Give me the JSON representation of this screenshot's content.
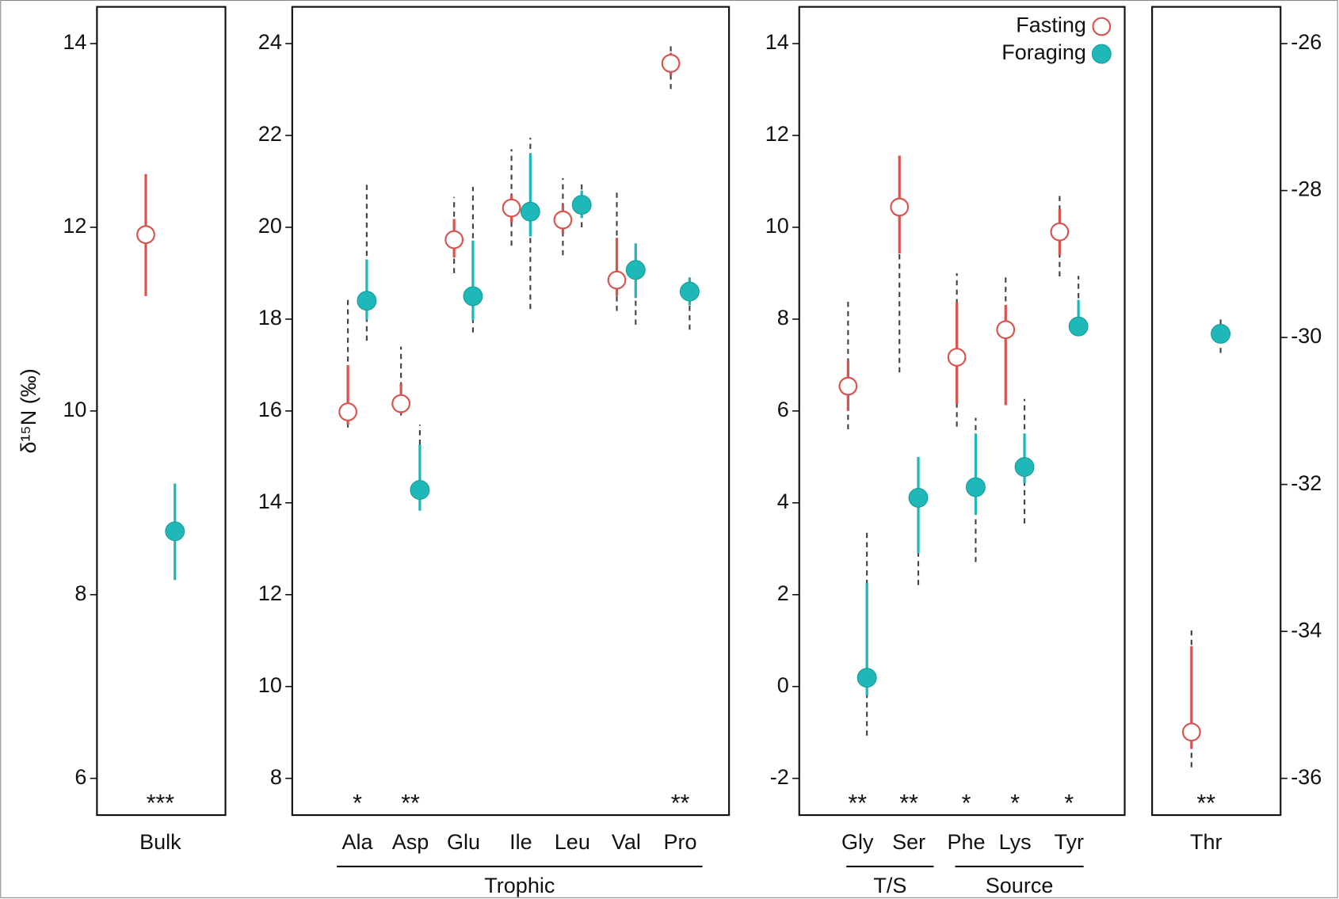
{
  "chart_data": [
    {
      "type": "errorbar",
      "ylabel": "δ¹⁵N (‰)",
      "categories": [
        "Bulk"
      ],
      "ylim": [
        5.6,
        14.4
      ],
      "yticks": [
        6,
        8,
        10,
        12,
        14
      ],
      "significance": [
        "***"
      ],
      "series": [
        {
          "color": "#d9534f",
          "filled": false,
          "values": [
            11.92
          ],
          "solid": [
            [
              11.25,
              12.58
            ]
          ]
        },
        {
          "color": "#1fb8b8",
          "filled": true,
          "values": [
            8.69
          ],
          "solid": [
            [
              8.16,
              9.21
            ]
          ]
        }
      ]
    },
    {
      "type": "errorbar",
      "categories": [
        "Ala",
        "Asp",
        "Glu",
        "Ile",
        "Leu",
        "Val",
        "Pro"
      ],
      "groups": [
        "Trophic"
      ],
      "ylim": [
        7.2,
        24.8
      ],
      "yticks": [
        8,
        10,
        12,
        14,
        16,
        18,
        20,
        22,
        24
      ],
      "significance": [
        "*",
        "**",
        null,
        null,
        null,
        null,
        "**"
      ],
      "series": [
        {
          "color": "#d9534f",
          "filled": false,
          "values": [
            15.98,
            16.16,
            19.73,
            20.42,
            20.16,
            18.85,
            23.57
          ],
          "solid": [
            [
              15.7,
              17.0
            ],
            [
              15.94,
              16.6
            ],
            [
              19.34,
              20.18
            ],
            [
              20.1,
              20.7
            ],
            [
              19.86,
              20.5
            ],
            [
              18.5,
              19.77
            ],
            [
              23.3,
              23.8
            ]
          ],
          "dashed": [
            [
              15.64,
              18.46
            ],
            [
              15.9,
              17.4
            ],
            [
              19.0,
              20.66
            ],
            [
              19.6,
              21.7
            ],
            [
              19.39,
              21.07
            ],
            [
              18.18,
              20.8
            ],
            [
              23.01,
              23.94
            ]
          ]
        },
        {
          "color": "#1fb8b8",
          "filled": true,
          "values": [
            18.4,
            14.28,
            18.5,
            20.34,
            20.49,
            19.07,
            18.6
          ],
          "solid": [
            [
              17.99,
              19.3
            ],
            [
              13.83,
              15.27
            ],
            [
              17.97,
              19.71
            ],
            [
              19.8,
              21.6
            ],
            [
              20.2,
              20.8
            ],
            [
              18.46,
              19.65
            ],
            [
              18.3,
              18.9
            ]
          ],
          "dashed": [
            [
              17.53,
              20.98
            ],
            [
              13.83,
              15.7
            ],
            [
              17.71,
              20.88
            ],
            [
              18.22,
              21.95
            ],
            [
              20.0,
              21.01
            ],
            [
              17.88,
              19.65
            ],
            [
              17.77,
              18.93
            ]
          ]
        }
      ]
    },
    {
      "type": "errorbar",
      "categories": [
        "Gly",
        "Ser",
        "Phe",
        "Lys",
        "Tyr"
      ],
      "groups": [
        "T/S",
        "Source"
      ],
      "ylim": [
        -2.8,
        14.8
      ],
      "yticks": [
        -2,
        0,
        2,
        4,
        6,
        8,
        10,
        12,
        14
      ],
      "legend": "upper right",
      "significance": [
        "**",
        "**",
        "*",
        "*",
        "*"
      ],
      "series": [
        {
          "name": "Fasting",
          "color": "#d9534f",
          "filled": false,
          "values": [
            6.54,
            10.44,
            7.17,
            7.77,
            9.9
          ],
          "solid": [
            [
              6.0,
              7.1
            ],
            [
              9.43,
              11.56
            ],
            [
              6.16,
              8.37
            ],
            [
              6.13,
              8.31
            ],
            [
              9.4,
              10.4
            ]
          ],
          "dashed": [
            [
              5.6,
              8.44
            ],
            [
              6.84,
              11.56
            ],
            [
              5.66,
              9.0
            ],
            [
              6.13,
              8.96
            ],
            [
              8.93,
              10.73
            ]
          ]
        },
        {
          "name": "Foraging",
          "color": "#1fb8b8",
          "filled": true,
          "values": [
            0.19,
            4.11,
            4.34,
            4.78,
            7.84
          ],
          "solid": [
            [
              -0.2,
              2.25
            ],
            [
              2.9,
              5.0
            ],
            [
              3.74,
              5.51
            ],
            [
              4.43,
              5.51
            ],
            [
              7.84,
              8.42
            ]
          ],
          "dashed": [
            [
              -1.07,
              3.4
            ],
            [
              2.21,
              5.0
            ],
            [
              2.71,
              5.85
            ],
            [
              3.55,
              6.26
            ],
            [
              7.84,
              8.94
            ]
          ]
        }
      ]
    },
    {
      "type": "errorbar",
      "categories": [
        "Thr"
      ],
      "y_axis": "right",
      "ylim": [
        -36.5,
        -25.5
      ],
      "yticks": [
        -36,
        -34,
        -32,
        -30,
        -28,
        -26
      ],
      "significance": [
        "**"
      ],
      "series": [
        {
          "color": "#d9534f",
          "filled": false,
          "values": [
            -35.37
          ],
          "solid": [
            [
              -35.6,
              -34.2
            ]
          ],
          "dashed": [
            [
              -35.85,
              -33.98
            ]
          ]
        },
        {
          "color": "#1fb8b8",
          "filled": true,
          "values": [
            -29.95
          ],
          "solid": [
            [
              -30.05,
              -29.85
            ]
          ],
          "dashed": [
            [
              -30.21,
              -29.71
            ]
          ]
        }
      ]
    }
  ]
}
